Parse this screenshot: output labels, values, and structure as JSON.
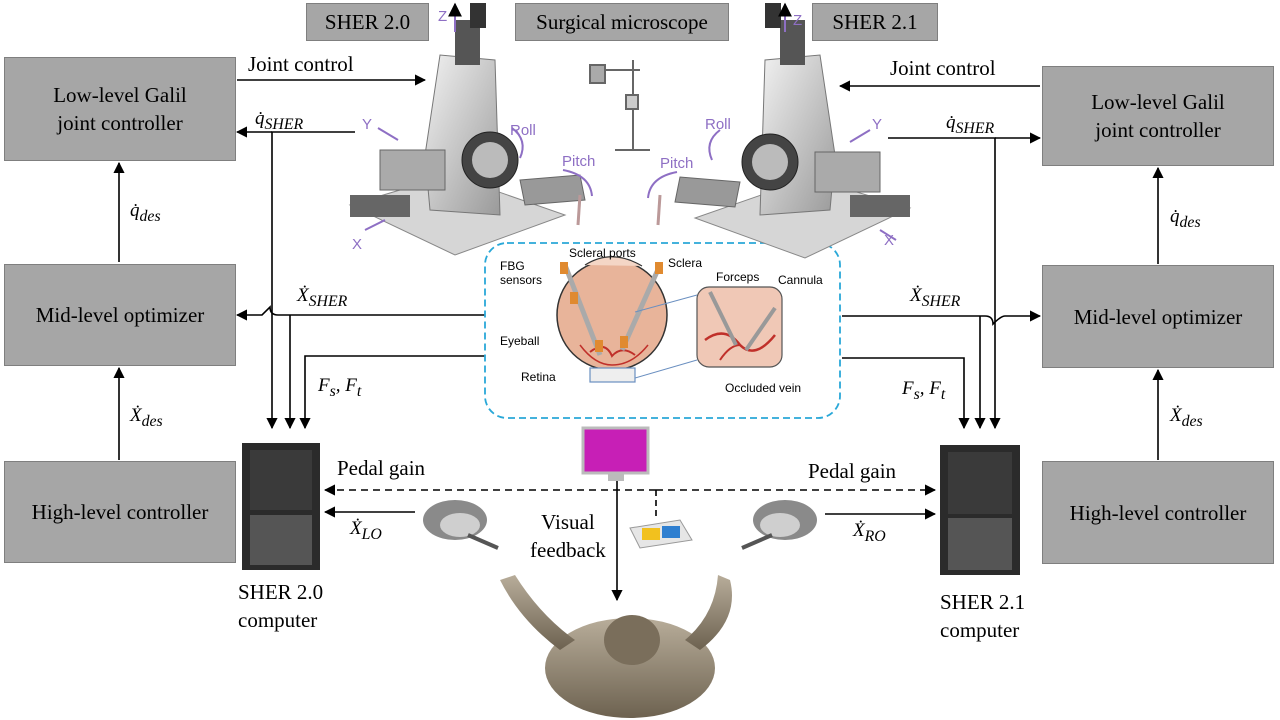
{
  "title_tags": {
    "sher20": "SHER 2.0",
    "microscope": "Surgical microscope",
    "sher21": "SHER 2.1"
  },
  "left_boxes": {
    "low": [
      "Low-level Galil",
      "joint controller"
    ],
    "mid": "Mid-level optimizer",
    "high": "High-level controller"
  },
  "right_boxes": {
    "low": [
      "Low-level Galil",
      "joint controller"
    ],
    "mid": "Mid-level optimizer",
    "high": "High-level controller"
  },
  "signals": {
    "joint_control": "Joint control",
    "qdot_sher": "q̇",
    "qdot_sher_sub": "SHER",
    "qdot_des": "q̇",
    "qdot_des_sub": "des",
    "xdot_sher": "Ẋ",
    "xdot_sher_sub": "SHER",
    "xdot_des": "Ẋ",
    "xdot_des_sub": "des",
    "forces": "F",
    "forces_sub1": "s",
    "forces_sub2": "t",
    "pedal_gain": "Pedal gain",
    "xdot_lo": "Ẋ",
    "xdot_lo_sub": "LO",
    "xdot_ro": "Ẋ",
    "xdot_ro_sub": "RO",
    "visual_feedback": [
      "Visual",
      "feedback"
    ]
  },
  "computers": {
    "left": [
      "SHER 2.0",
      "computer"
    ],
    "right": [
      "SHER 2.1",
      "computer"
    ]
  },
  "robot_axes": {
    "z": "Z",
    "y": "Y",
    "x": "X",
    "roll": "Roll",
    "pitch": "Pitch"
  },
  "eye_inset": {
    "fbg": [
      "FBG",
      "sensors"
    ],
    "scleral_ports": "Scleral ports",
    "sclera": "Sclera",
    "eyeball": "Eyeball",
    "retina": "Retina",
    "forceps": "Forceps",
    "cannula": "Cannula",
    "occluded_vein": "Occluded vein"
  },
  "colors": {
    "box_fill": "#a6a6a6",
    "inset_border": "#2aa8d8",
    "axis_purple": "#8e6fc4",
    "eye_skin": "#e8b49a",
    "vein": "#c0302a"
  }
}
